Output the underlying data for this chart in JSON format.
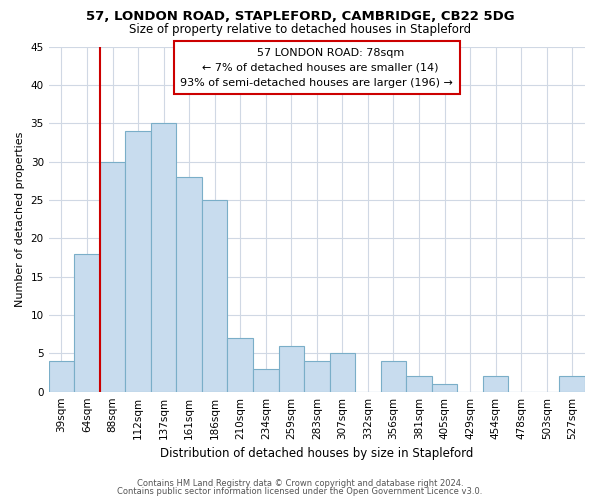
{
  "title1": "57, LONDON ROAD, STAPLEFORD, CAMBRIDGE, CB22 5DG",
  "title2": "Size of property relative to detached houses in Stapleford",
  "xlabel": "Distribution of detached houses by size in Stapleford",
  "ylabel": "Number of detached properties",
  "bar_labels": [
    "39sqm",
    "64sqm",
    "88sqm",
    "112sqm",
    "137sqm",
    "161sqm",
    "186sqm",
    "210sqm",
    "234sqm",
    "259sqm",
    "283sqm",
    "307sqm",
    "332sqm",
    "356sqm",
    "381sqm",
    "405sqm",
    "429sqm",
    "454sqm",
    "478sqm",
    "503sqm",
    "527sqm"
  ],
  "bar_values": [
    4,
    18,
    30,
    34,
    35,
    28,
    25,
    7,
    3,
    6,
    4,
    5,
    0,
    4,
    2,
    1,
    0,
    2,
    0,
    0,
    2
  ],
  "bar_color": "#c8dcee",
  "bar_edgecolor": "#7aaec8",
  "vline_color": "#cc0000",
  "ylim": [
    0,
    45
  ],
  "yticks": [
    0,
    5,
    10,
    15,
    20,
    25,
    30,
    35,
    40,
    45
  ],
  "annotation_title": "57 LONDON ROAD: 78sqm",
  "annotation_line1": "← 7% of detached houses are smaller (14)",
  "annotation_line2": "93% of semi-detached houses are larger (196) →",
  "annotation_box_facecolor": "#ffffff",
  "annotation_box_edgecolor": "#cc0000",
  "grid_color": "#d0d8e4",
  "footer1": "Contains HM Land Registry data © Crown copyright and database right 2024.",
  "footer2": "Contains public sector information licensed under the Open Government Licence v3.0."
}
